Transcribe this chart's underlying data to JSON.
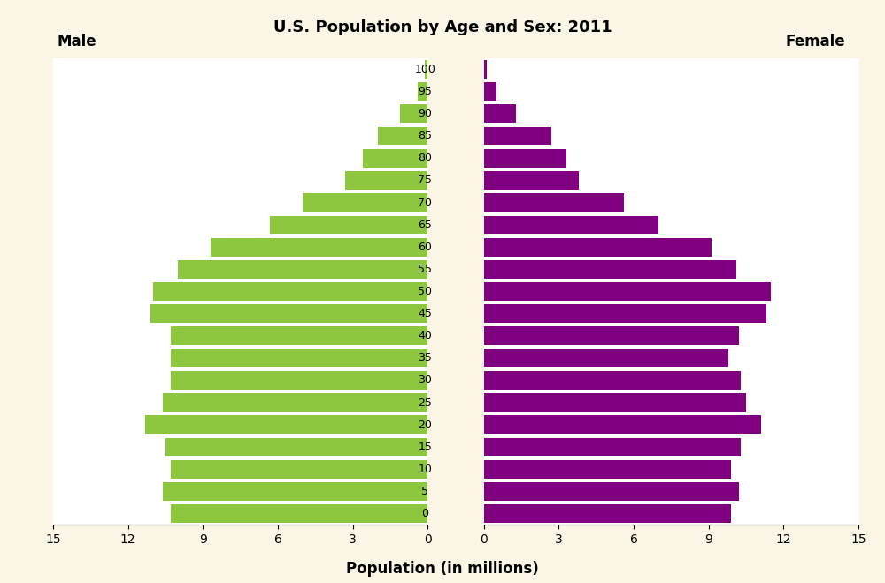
{
  "title": "U.S. Population by Age and Sex: 2011",
  "xlabel": "Population (in millions)",
  "male_label": "Male",
  "female_label": "Female",
  "age_groups": [
    0,
    5,
    10,
    15,
    20,
    25,
    30,
    35,
    40,
    45,
    50,
    55,
    60,
    65,
    70,
    75,
    80,
    85,
    90,
    95,
    100
  ],
  "male_values": [
    10.3,
    10.6,
    10.3,
    10.5,
    11.3,
    10.6,
    10.3,
    10.3,
    10.3,
    11.1,
    11.0,
    10.0,
    8.7,
    6.3,
    5.0,
    3.3,
    2.6,
    2.0,
    1.1,
    0.4,
    0.1
  ],
  "female_values": [
    9.9,
    10.2,
    9.9,
    10.3,
    11.1,
    10.5,
    10.3,
    9.8,
    10.2,
    11.3,
    11.5,
    10.1,
    9.1,
    7.0,
    5.6,
    3.8,
    3.3,
    2.7,
    1.3,
    0.5,
    0.1
  ],
  "male_color": "#8DC63F",
  "female_color": "#800080",
  "background_color": "#FAF5E4",
  "plot_background": "#FFFFFF",
  "xlim": 15,
  "title_fontsize": 13,
  "label_fontsize": 12,
  "tick_fontsize": 10,
  "age_fontsize": 9
}
